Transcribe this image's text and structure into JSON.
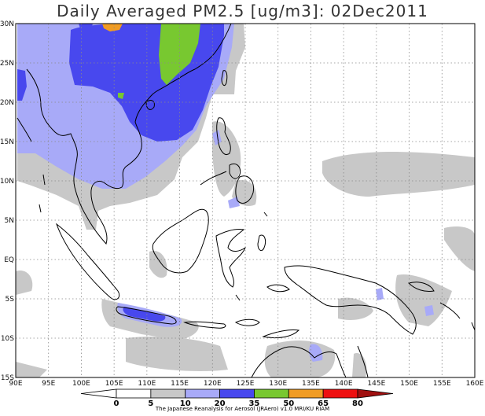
{
  "title": "Daily Averaged PM2.5 [ug/m3]: 02Dec2011",
  "credit": "The Japanese Reanalysis for Aerosol (JRAero) v1.0 MRI/KU RIAM",
  "map": {
    "lon_range": [
      90,
      160
    ],
    "lat_range": [
      -15,
      30
    ],
    "lat_ticks": [
      {
        "value": 30,
        "label": "30N"
      },
      {
        "value": 25,
        "label": "25N"
      },
      {
        "value": 20,
        "label": "20N"
      },
      {
        "value": 15,
        "label": "15N"
      },
      {
        "value": 10,
        "label": "10N"
      },
      {
        "value": 5,
        "label": "5N"
      },
      {
        "value": 0,
        "label": "EQ"
      },
      {
        "value": -5,
        "label": "5S"
      },
      {
        "value": -10,
        "label": "10S"
      },
      {
        "value": -15,
        "label": "15S"
      }
    ],
    "lon_ticks": [
      {
        "value": 90,
        "label": "90E"
      },
      {
        "value": 95,
        "label": "95E"
      },
      {
        "value": 100,
        "label": "100E"
      },
      {
        "value": 105,
        "label": "105E"
      },
      {
        "value": 110,
        "label": "110E"
      },
      {
        "value": 115,
        "label": "115E"
      },
      {
        "value": 120,
        "label": "120E"
      },
      {
        "value": 125,
        "label": "125E"
      },
      {
        "value": 130,
        "label": "130E"
      },
      {
        "value": 135,
        "label": "135E"
      },
      {
        "value": 140,
        "label": "140E"
      },
      {
        "value": 145,
        "label": "145E"
      },
      {
        "value": 150,
        "label": "150E"
      },
      {
        "value": 155,
        "label": "155E"
      },
      {
        "value": 160,
        "label": "160E"
      }
    ],
    "grid": true
  },
  "colorbar": {
    "labels": [
      "0",
      "5",
      "10",
      "20",
      "35",
      "50",
      "65",
      "80"
    ],
    "colors": [
      "#ffffff",
      "#ffffff",
      "#c8c8c8",
      "#a8aaf8",
      "#4848ee",
      "#78c830",
      "#f09c24",
      "#ee1010",
      "#a01010"
    ]
  },
  "layers": {
    "c10": "#c8c8c8",
    "c20": "#a8aaf8",
    "c35": "#4848ee",
    "c50": "#78c830",
    "c65": "#f09c24",
    "coast": "#000000"
  }
}
